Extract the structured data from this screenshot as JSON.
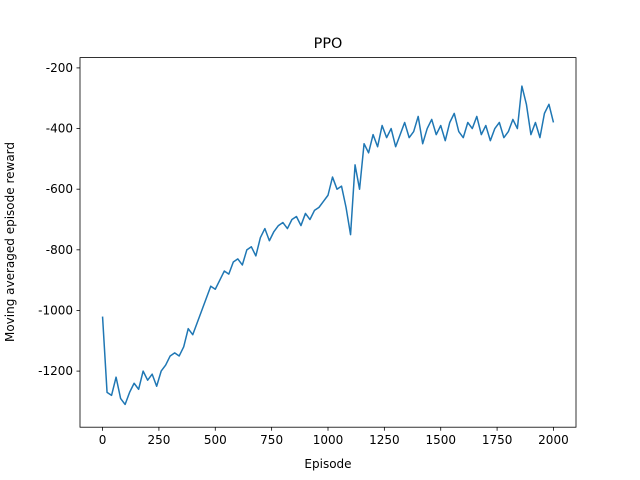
{
  "chart_data": {
    "type": "line",
    "title": "PPO",
    "x_label": "Episode",
    "y_label": "Moving averaged episode reward",
    "color": "#1f77b4",
    "x": [
      0,
      20,
      40,
      60,
      80,
      100,
      120,
      140,
      160,
      180,
      200,
      220,
      240,
      260,
      280,
      300,
      320,
      340,
      360,
      380,
      400,
      420,
      440,
      460,
      480,
      500,
      520,
      540,
      560,
      580,
      600,
      620,
      640,
      660,
      680,
      700,
      720,
      740,
      760,
      780,
      800,
      820,
      840,
      860,
      880,
      900,
      920,
      940,
      960,
      980,
      1000,
      1020,
      1040,
      1060,
      1080,
      1100,
      1120,
      1140,
      1160,
      1180,
      1200,
      1220,
      1240,
      1260,
      1280,
      1300,
      1320,
      1340,
      1360,
      1380,
      1400,
      1420,
      1440,
      1460,
      1480,
      1500,
      1520,
      1540,
      1560,
      1580,
      1600,
      1620,
      1640,
      1660,
      1680,
      1700,
      1720,
      1740,
      1760,
      1780,
      1800,
      1820,
      1840,
      1860,
      1880,
      1900,
      1920,
      1940,
      1960,
      1980,
      2000
    ],
    "values": [
      -1020,
      -1270,
      -1280,
      -1220,
      -1290,
      -1310,
      -1270,
      -1240,
      -1260,
      -1200,
      -1230,
      -1210,
      -1250,
      -1200,
      -1180,
      -1150,
      -1140,
      -1150,
      -1120,
      -1060,
      -1080,
      -1040,
      -1000,
      -960,
      -920,
      -930,
      -900,
      -870,
      -880,
      -840,
      -830,
      -850,
      -800,
      -790,
      -820,
      -760,
      -730,
      -770,
      -740,
      -720,
      -710,
      -730,
      -700,
      -690,
      -720,
      -680,
      -700,
      -670,
      -660,
      -640,
      -620,
      -560,
      -600,
      -590,
      -660,
      -750,
      -520,
      -600,
      -450,
      -480,
      -420,
      -460,
      -390,
      -430,
      -400,
      -460,
      -420,
      -380,
      -430,
      -410,
      -360,
      -450,
      -400,
      -370,
      -420,
      -390,
      -440,
      -380,
      -350,
      -410,
      -430,
      -380,
      -400,
      -360,
      -420,
      -390,
      -440,
      -400,
      -380,
      -430,
      -410,
      -370,
      -400,
      -260,
      -320,
      -420,
      -380,
      -430,
      -350,
      -320,
      -380
    ],
    "xlim": [
      -100,
      2100
    ],
    "ylim": [
      -1385,
      -166
    ],
    "xticks": [
      0,
      250,
      500,
      750,
      1000,
      1250,
      1500,
      1750,
      2000
    ],
    "yticks": [
      -1200,
      -1000,
      -800,
      -600,
      -400,
      -200
    ]
  }
}
